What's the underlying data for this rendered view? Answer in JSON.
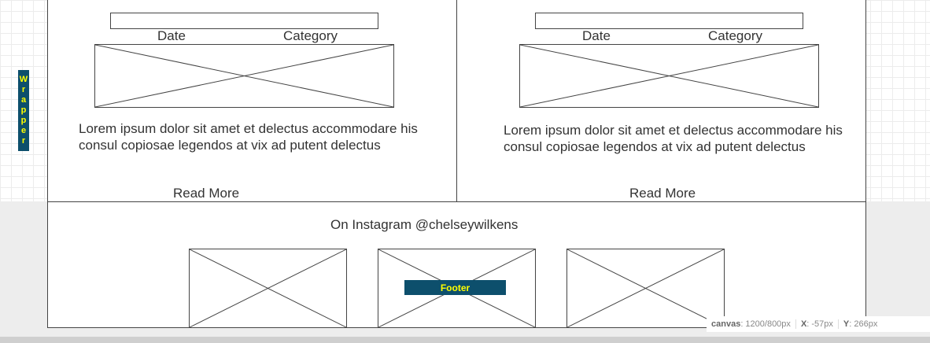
{
  "wrapper_label": "Wrapper",
  "posts": [
    {
      "date_label": "Date",
      "category_label": "Category",
      "excerpt": "Lorem ipsum dolor sit amet et delectus accommodare his consul copiosae legendos at vix ad putent delectus",
      "read_more": "Read More"
    },
    {
      "date_label": "Date",
      "category_label": "Category",
      "excerpt": "Lorem ipsum dolor sit amet et delectus accommodare his consul copiosae legendos at vix ad putent delectus",
      "read_more": "Read More"
    }
  ],
  "footer": {
    "instagram_heading": "On Instagram @chelseywilkens",
    "label": "Footer"
  },
  "status": {
    "canvas_label": "canvas",
    "canvas_value": ": 1200/800px",
    "x_label": "X",
    "x_value": ": -57px",
    "y_label": "Y",
    "y_value": ": 266px"
  },
  "colors": {
    "annotation_bg": "#0d4f6c",
    "annotation_text": "#ffff00"
  }
}
